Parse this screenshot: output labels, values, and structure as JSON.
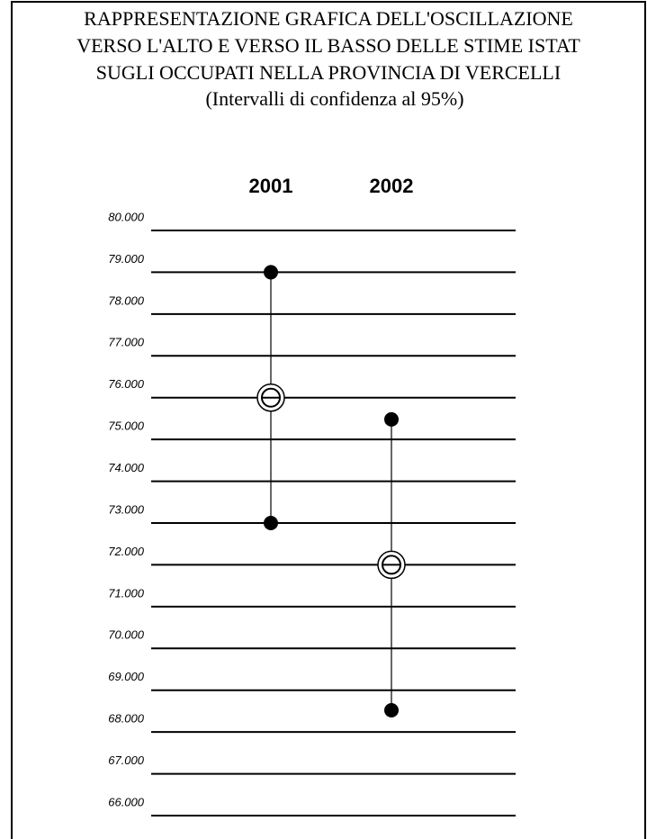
{
  "chart_data": {
    "type": "interval",
    "title": [
      "RAPPRESENTAZIONE GRAFICA DELL'OSCILLAZIONE",
      "VERSO L'ALTO E VERSO IL BASSO DELLE STIME ISTAT",
      "SUGLI OCCUPATI NELLA PROVINCIA DI VERCELLI"
    ],
    "subtitle": "(Intervalli di confidenza al 95%)",
    "categories": [
      "2001",
      "2002"
    ],
    "low": [
      73000,
      68520
    ],
    "values": [
      76000,
      72000
    ],
    "high": [
      79000,
      75480
    ],
    "color": "#000000",
    "ylim": [
      66000,
      80000
    ],
    "yticks": [
      {
        "value": 80000,
        "label": "80.000"
      },
      {
        "value": 79000,
        "label": "79.000"
      },
      {
        "value": 78000,
        "label": "78.000"
      },
      {
        "value": 77000,
        "label": "77.000"
      },
      {
        "value": 76000,
        "label": "76.000"
      },
      {
        "value": 75000,
        "label": "75.000"
      },
      {
        "value": 74000,
        "label": "74.000"
      },
      {
        "value": 73000,
        "label": "73.000"
      },
      {
        "value": 72000,
        "label": "72.000"
      },
      {
        "value": 71000,
        "label": "71.000"
      },
      {
        "value": 70000,
        "label": "70.000"
      },
      {
        "value": 69000,
        "label": "69.000"
      },
      {
        "value": 68000,
        "label": "68.000"
      },
      {
        "value": 67000,
        "label": "67.000"
      },
      {
        "value": 66000,
        "label": "66.000"
      }
    ],
    "grid": true
  }
}
